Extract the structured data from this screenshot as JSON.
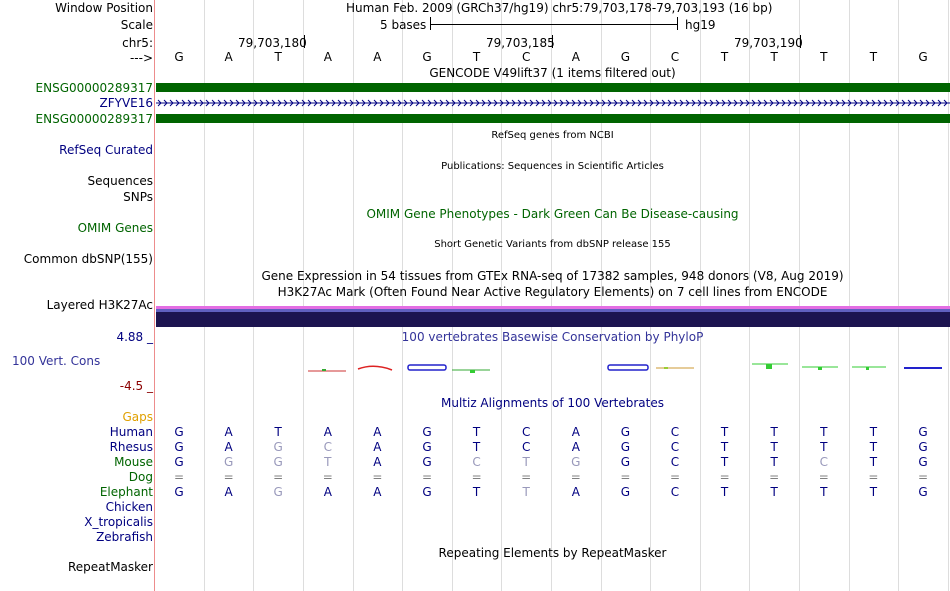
{
  "header": {
    "window_position_label": "Window Position",
    "assembly_position": "Human Feb. 2009 (GRCh37/hg19)    chr5:79,703,178-79,703,193 (16 bp)",
    "scale_label": "Scale",
    "scale_text": "5 bases",
    "scale_db": "hg19",
    "chrom_label": "chr5:",
    "arrow_label": "--->",
    "coord_1": "79,703,180",
    "coord_2": "79,703,185",
    "coord_3": "79,703,190"
  },
  "sequence": [
    "G",
    "A",
    "T",
    "A",
    "A",
    "G",
    "T",
    "C",
    "A",
    "G",
    "C",
    "T",
    "T",
    "T",
    "T",
    "G"
  ],
  "tracks": {
    "gencode_title": "GENCODE V49lift37 (1 items filtered out)",
    "gencode_gene_1": "ENSG00000289317",
    "gencode_gene_2": "ZFYVE16",
    "gencode_gene_3": "ENSG00000289317",
    "refseq_title": "RefSeq genes from NCBI",
    "refseq_label": "RefSeq Curated",
    "pubs_title": "Publications: Sequences in Scientific Articles",
    "sequences_label": "Sequences",
    "snps_label": "SNPs",
    "omim_title": "OMIM Gene Phenotypes - Dark Green Can Be Disease-causing",
    "omim_label": "OMIM Genes",
    "dbsnp_title": "Short Genetic Variants from dbSNP release 155",
    "dbsnp_label": "Common dbSNP(155)",
    "gtex_title": "Gene Expression in 54 tissues from GTEx RNA-seq of 17382 samples, 948 donors (V8, Aug 2019)",
    "h3k27_title": "H3K27Ac Mark (Often Found Near Active Regulatory Elements) on 7 cell lines from ENCODE",
    "h3k27_label": "Layered H3K27Ac",
    "phylop_max": "4.88 _",
    "phylop_title": "100 vertebrates Basewise Conservation by PhyloP",
    "phylop_label": "100 Vert. Cons",
    "phylop_min": "-4.5 _",
    "multiz_title": "Multiz Alignments of 100 Vertebrates",
    "gaps_label": "Gaps",
    "repeat_title": "Repeating Elements by RepeatMasker",
    "repeat_label": "RepeatMasker"
  },
  "species": [
    {
      "name": "Human",
      "bases": [
        "G",
        "A",
        "T",
        "A",
        "A",
        "G",
        "T",
        "C",
        "A",
        "G",
        "C",
        "T",
        "T",
        "T",
        "T",
        "G"
      ]
    },
    {
      "name": "Rhesus",
      "bases": [
        "G",
        "A",
        "G",
        "C",
        "A",
        "G",
        "T",
        "C",
        "A",
        "G",
        "C",
        "T",
        "T",
        "T",
        "T",
        "G"
      ]
    },
    {
      "name": "Mouse",
      "bases": [
        "G",
        "G",
        "G",
        "T",
        "A",
        "G",
        "C",
        "T",
        "G",
        "G",
        "C",
        "T",
        "T",
        "C",
        "T",
        "G"
      ]
    },
    {
      "name": "Dog",
      "bases": [
        "=",
        "=",
        "=",
        "=",
        "=",
        "=",
        "=",
        "=",
        "=",
        "=",
        "=",
        "=",
        "=",
        "=",
        "=",
        "="
      ]
    },
    {
      "name": "Elephant",
      "bases": [
        "G",
        "A",
        "G",
        "A",
        "A",
        "G",
        "T",
        "T",
        "A",
        "G",
        "C",
        "T",
        "T",
        "T",
        "T",
        "G"
      ]
    },
    {
      "name": "Chicken",
      "bases": []
    },
    {
      "name": "X_tropicalis",
      "bases": []
    },
    {
      "name": "Zebrafish",
      "bases": []
    }
  ],
  "colors": {
    "navy": "#000080",
    "dark_green": "#006400",
    "gencode_green": "#006400",
    "gaps_orange": "#e0a000",
    "phylop_max": "#000080",
    "phylop_min": "#8b0000",
    "h3k27_dark": "#1c1450",
    "h3k27_pink": "#e36ee3"
  }
}
